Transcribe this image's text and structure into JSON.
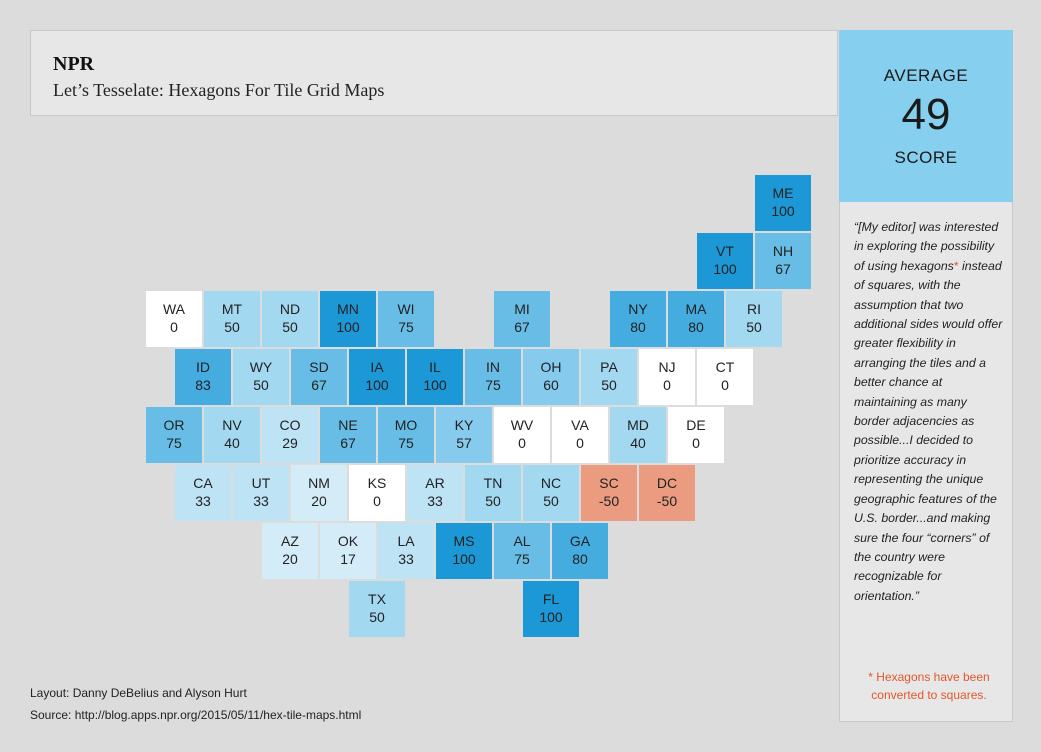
{
  "header": {
    "brand": "NPR",
    "subtitle": "Let’s Tesselate: Hexagons For Tile Grid Maps"
  },
  "average": {
    "top_label": "AVERAGE",
    "value": "49",
    "bottom_label": "SCORE"
  },
  "quote": {
    "before": "“[My editor] was interested in exploring the possibility of using hexagons",
    "asterisk": "*",
    "after": " instead of squares, with the assumption that two additional sides would offer greater flexibility in arranging the tiles and a better chance at maintaining as many border adjacencies as possible...I decided to prioritize accuracy in representing the unique geographic features of the U.S. border...and making sure the four “corners” of the country were recognizable for orientation.”"
  },
  "footnote": "* Hexagons have been converted to squares.",
  "credits": {
    "layout": "Layout: Danny DeBelius and Alyson Hurt",
    "source": "Source: http://blog.apps.npr.org/2015/05/11/hex-tile-maps.html"
  },
  "colors": {
    "positive_scale": [
      "#ffffff",
      "#d4ecf8",
      "#bde3f5",
      "#a3d8f1",
      "#86cbee",
      "#68bde7",
      "#45ace0",
      "#1c98d6"
    ],
    "negative": "#eb9c80"
  },
  "chart_data": {
    "type": "table",
    "title": "",
    "columns": 11,
    "rows": 8,
    "states": [
      {
        "abbr": "ME",
        "value": 100,
        "row": 0,
        "col": 10.5
      },
      {
        "abbr": "VT",
        "value": 100,
        "row": 1,
        "col": 9.5
      },
      {
        "abbr": "NH",
        "value": 67,
        "row": 1,
        "col": 10.5
      },
      {
        "abbr": "WA",
        "value": 0,
        "row": 2,
        "col": 0
      },
      {
        "abbr": "MT",
        "value": 50,
        "row": 2,
        "col": 1
      },
      {
        "abbr": "ND",
        "value": 50,
        "row": 2,
        "col": 2
      },
      {
        "abbr": "MN",
        "value": 100,
        "row": 2,
        "col": 3
      },
      {
        "abbr": "WI",
        "value": 75,
        "row": 2,
        "col": 4
      },
      {
        "abbr": "MI",
        "value": 67,
        "row": 2,
        "col": 6
      },
      {
        "abbr": "NY",
        "value": 80,
        "row": 2,
        "col": 8
      },
      {
        "abbr": "MA",
        "value": 80,
        "row": 2,
        "col": 9
      },
      {
        "abbr": "RI",
        "value": 50,
        "row": 2,
        "col": 10
      },
      {
        "abbr": "ID",
        "value": 83,
        "row": 3,
        "col": 0.5
      },
      {
        "abbr": "WY",
        "value": 50,
        "row": 3,
        "col": 1.5
      },
      {
        "abbr": "SD",
        "value": 67,
        "row": 3,
        "col": 2.5
      },
      {
        "abbr": "IA",
        "value": 100,
        "row": 3,
        "col": 3.5
      },
      {
        "abbr": "IL",
        "value": 100,
        "row": 3,
        "col": 4.5
      },
      {
        "abbr": "IN",
        "value": 75,
        "row": 3,
        "col": 5.5
      },
      {
        "abbr": "OH",
        "value": 60,
        "row": 3,
        "col": 6.5
      },
      {
        "abbr": "PA",
        "value": 50,
        "row": 3,
        "col": 7.5
      },
      {
        "abbr": "NJ",
        "value": 0,
        "row": 3,
        "col": 8.5
      },
      {
        "abbr": "CT",
        "value": 0,
        "row": 3,
        "col": 9.5
      },
      {
        "abbr": "OR",
        "value": 75,
        "row": 4,
        "col": 0
      },
      {
        "abbr": "NV",
        "value": 40,
        "row": 4,
        "col": 1
      },
      {
        "abbr": "CO",
        "value": 29,
        "row": 4,
        "col": 2
      },
      {
        "abbr": "NE",
        "value": 67,
        "row": 4,
        "col": 3
      },
      {
        "abbr": "MO",
        "value": 75,
        "row": 4,
        "col": 4
      },
      {
        "abbr": "KY",
        "value": 57,
        "row": 4,
        "col": 5
      },
      {
        "abbr": "WV",
        "value": 0,
        "row": 4,
        "col": 6
      },
      {
        "abbr": "VA",
        "value": 0,
        "row": 4,
        "col": 7
      },
      {
        "abbr": "MD",
        "value": 40,
        "row": 4,
        "col": 8
      },
      {
        "abbr": "DE",
        "value": 0,
        "row": 4,
        "col": 9
      },
      {
        "abbr": "CA",
        "value": 33,
        "row": 5,
        "col": 0.5
      },
      {
        "abbr": "UT",
        "value": 33,
        "row": 5,
        "col": 1.5
      },
      {
        "abbr": "NM",
        "value": 20,
        "row": 5,
        "col": 2.5
      },
      {
        "abbr": "KS",
        "value": 0,
        "row": 5,
        "col": 3.5
      },
      {
        "abbr": "AR",
        "value": 33,
        "row": 5,
        "col": 4.5
      },
      {
        "abbr": "TN",
        "value": 50,
        "row": 5,
        "col": 5.5
      },
      {
        "abbr": "NC",
        "value": 50,
        "row": 5,
        "col": 6.5
      },
      {
        "abbr": "SC",
        "value": -50,
        "row": 5,
        "col": 7.5
      },
      {
        "abbr": "DC",
        "value": -50,
        "row": 5,
        "col": 8.5
      },
      {
        "abbr": "AZ",
        "value": 20,
        "row": 6,
        "col": 2
      },
      {
        "abbr": "OK",
        "value": 17,
        "row": 6,
        "col": 3
      },
      {
        "abbr": "LA",
        "value": 33,
        "row": 6,
        "col": 4
      },
      {
        "abbr": "MS",
        "value": 100,
        "row": 6,
        "col": 5
      },
      {
        "abbr": "AL",
        "value": 75,
        "row": 6,
        "col": 6
      },
      {
        "abbr": "GA",
        "value": 80,
        "row": 6,
        "col": 7
      },
      {
        "abbr": "TX",
        "value": 50,
        "row": 7,
        "col": 3.5
      },
      {
        "abbr": "FL",
        "value": 100,
        "row": 7,
        "col": 6.5
      }
    ]
  }
}
